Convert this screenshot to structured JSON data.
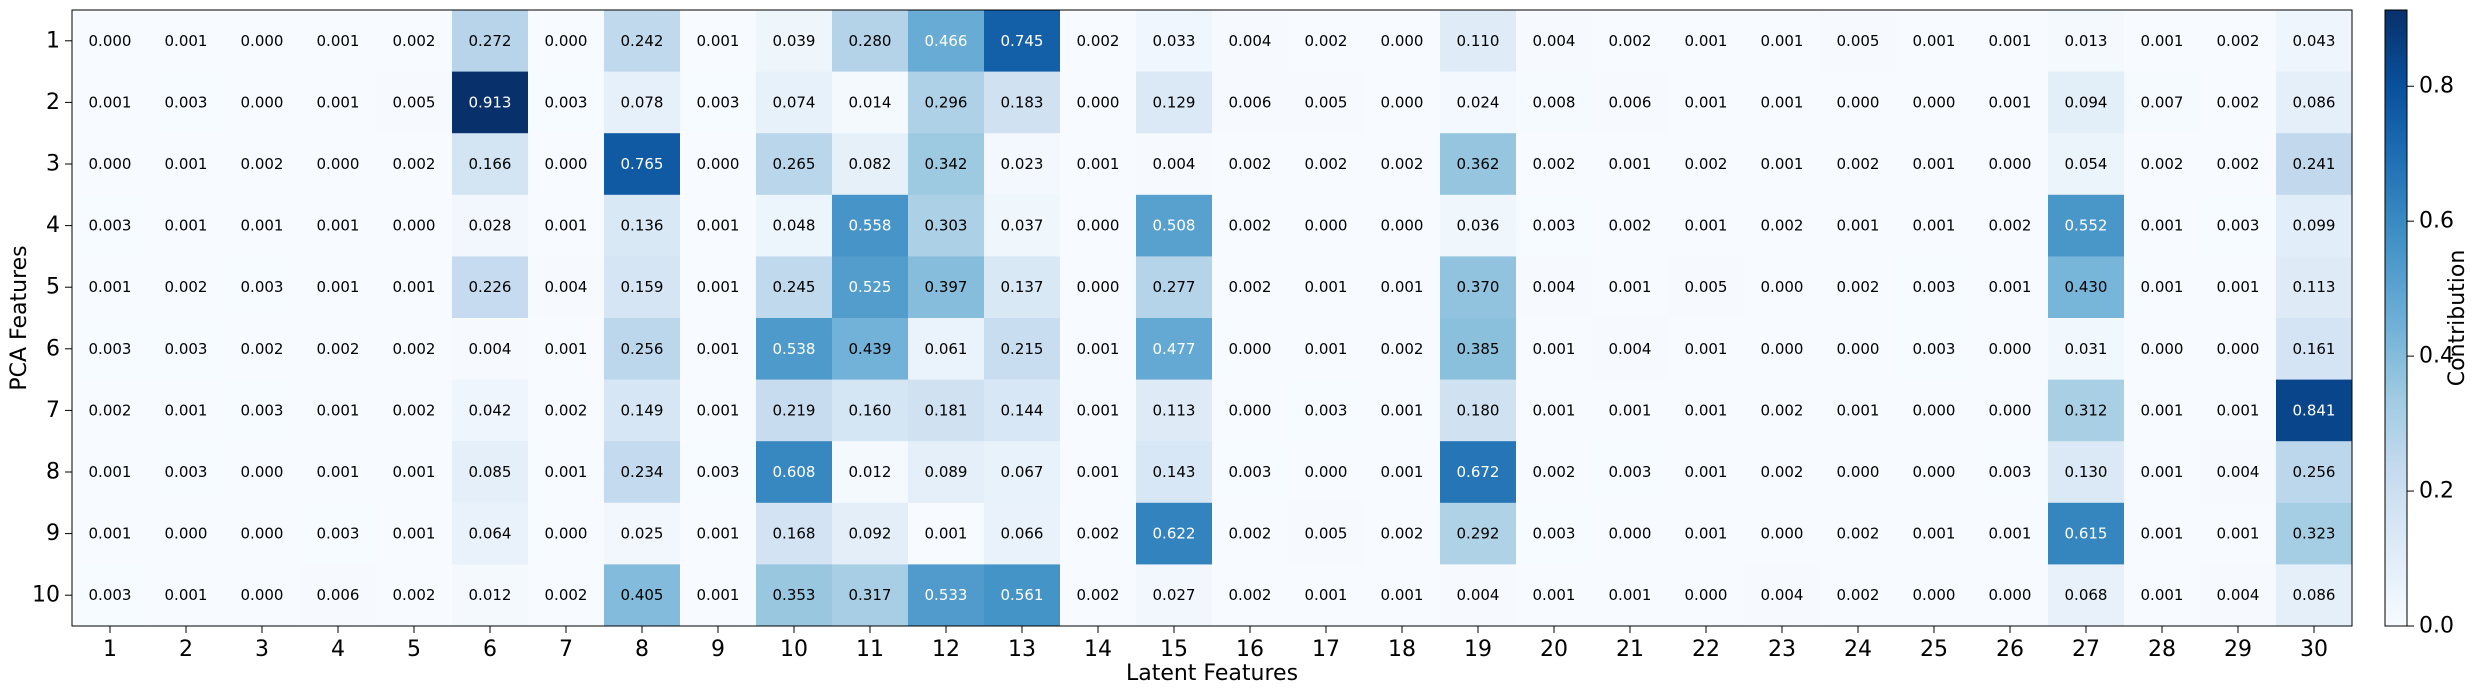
{
  "chart_data": {
    "type": "heatmap",
    "xlabel": "Latent Features",
    "ylabel": "PCA Features",
    "x_categories": [
      "1",
      "2",
      "3",
      "4",
      "5",
      "6",
      "7",
      "8",
      "9",
      "10",
      "11",
      "12",
      "13",
      "14",
      "15",
      "16",
      "17",
      "18",
      "19",
      "20",
      "21",
      "22",
      "23",
      "24",
      "25",
      "26",
      "27",
      "28",
      "29",
      "30"
    ],
    "y_categories": [
      "1",
      "2",
      "3",
      "4",
      "5",
      "6",
      "7",
      "8",
      "9",
      "10"
    ],
    "values": [
      [
        0.0,
        0.001,
        0.0,
        0.001,
        0.002,
        0.272,
        0.0,
        0.242,
        0.001,
        0.039,
        0.28,
        0.466,
        0.745,
        0.002,
        0.033,
        0.004,
        0.002,
        0.0,
        0.11,
        0.004,
        0.002,
        0.001,
        0.001,
        0.005,
        0.001,
        0.001,
        0.013,
        0.001,
        0.002,
        0.043
      ],
      [
        0.001,
        0.003,
        0.0,
        0.001,
        0.005,
        0.913,
        0.003,
        0.078,
        0.003,
        0.074,
        0.014,
        0.296,
        0.183,
        0.0,
        0.129,
        0.006,
        0.005,
        0.0,
        0.024,
        0.008,
        0.006,
        0.001,
        0.001,
        0.0,
        0.0,
        0.001,
        0.094,
        0.007,
        0.002,
        0.086
      ],
      [
        0.0,
        0.001,
        0.002,
        0.0,
        0.002,
        0.166,
        0.0,
        0.765,
        0.0,
        0.265,
        0.082,
        0.342,
        0.023,
        0.001,
        0.004,
        0.002,
        0.002,
        0.002,
        0.362,
        0.002,
        0.001,
        0.002,
        0.001,
        0.002,
        0.001,
        0.0,
        0.054,
        0.002,
        0.002,
        0.241
      ],
      [
        0.003,
        0.001,
        0.001,
        0.001,
        0.0,
        0.028,
        0.001,
        0.136,
        0.001,
        0.048,
        0.558,
        0.303,
        0.037,
        0.0,
        0.508,
        0.002,
        0.0,
        0.0,
        0.036,
        0.003,
        0.002,
        0.001,
        0.002,
        0.001,
        0.001,
        0.002,
        0.552,
        0.001,
        0.003,
        0.099
      ],
      [
        0.001,
        0.002,
        0.003,
        0.001,
        0.001,
        0.226,
        0.004,
        0.159,
        0.001,
        0.245,
        0.525,
        0.397,
        0.137,
        0.0,
        0.277,
        0.002,
        0.001,
        0.001,
        0.37,
        0.004,
        0.001,
        0.005,
        0.0,
        0.002,
        0.003,
        0.001,
        0.43,
        0.001,
        0.001,
        0.113
      ],
      [
        0.003,
        0.003,
        0.002,
        0.002,
        0.002,
        0.004,
        0.001,
        0.256,
        0.001,
        0.538,
        0.439,
        0.061,
        0.215,
        0.001,
        0.477,
        0.0,
        0.001,
        0.002,
        0.385,
        0.001,
        0.004,
        0.001,
        0.0,
        0.0,
        0.003,
        0.0,
        0.031,
        0.0,
        0.0,
        0.161
      ],
      [
        0.002,
        0.001,
        0.003,
        0.001,
        0.002,
        0.042,
        0.002,
        0.149,
        0.001,
        0.219,
        0.16,
        0.181,
        0.144,
        0.001,
        0.113,
        0.0,
        0.003,
        0.001,
        0.18,
        0.001,
        0.001,
        0.001,
        0.002,
        0.001,
        0.0,
        0.0,
        0.312,
        0.001,
        0.001,
        0.841
      ],
      [
        0.001,
        0.003,
        0.0,
        0.001,
        0.001,
        0.085,
        0.001,
        0.234,
        0.003,
        0.608,
        0.012,
        0.089,
        0.067,
        0.001,
        0.143,
        0.003,
        0.0,
        0.001,
        0.672,
        0.002,
        0.003,
        0.001,
        0.002,
        0.0,
        0.0,
        0.003,
        0.13,
        0.001,
        0.004,
        0.256
      ],
      [
        0.001,
        0.0,
        0.0,
        0.003,
        0.001,
        0.064,
        0.0,
        0.025,
        0.001,
        0.168,
        0.092,
        0.001,
        0.066,
        0.002,
        0.622,
        0.002,
        0.005,
        0.002,
        0.292,
        0.003,
        0.0,
        0.001,
        0.0,
        0.002,
        0.001,
        0.001,
        0.615,
        0.001,
        0.001,
        0.323
      ],
      [
        0.003,
        0.001,
        0.0,
        0.006,
        0.002,
        0.012,
        0.002,
        0.405,
        0.001,
        0.353,
        0.317,
        0.533,
        0.561,
        0.002,
        0.027,
        0.002,
        0.001,
        0.001,
        0.004,
        0.001,
        0.001,
        0.0,
        0.004,
        0.002,
        0.0,
        0.0,
        0.068,
        0.001,
        0.004,
        0.086
      ]
    ],
    "value_format": "0.000",
    "vmin": 0.0,
    "vmax": 0.913,
    "colormap": "Blues",
    "colorbar": {
      "label": "Contribution",
      "ticks": [
        0.0,
        0.2,
        0.4,
        0.6,
        0.8
      ],
      "tick_labels": [
        "0.0",
        "0.2",
        "0.4",
        "0.6",
        "0.8"
      ],
      "placement": "right"
    },
    "grid": false
  }
}
